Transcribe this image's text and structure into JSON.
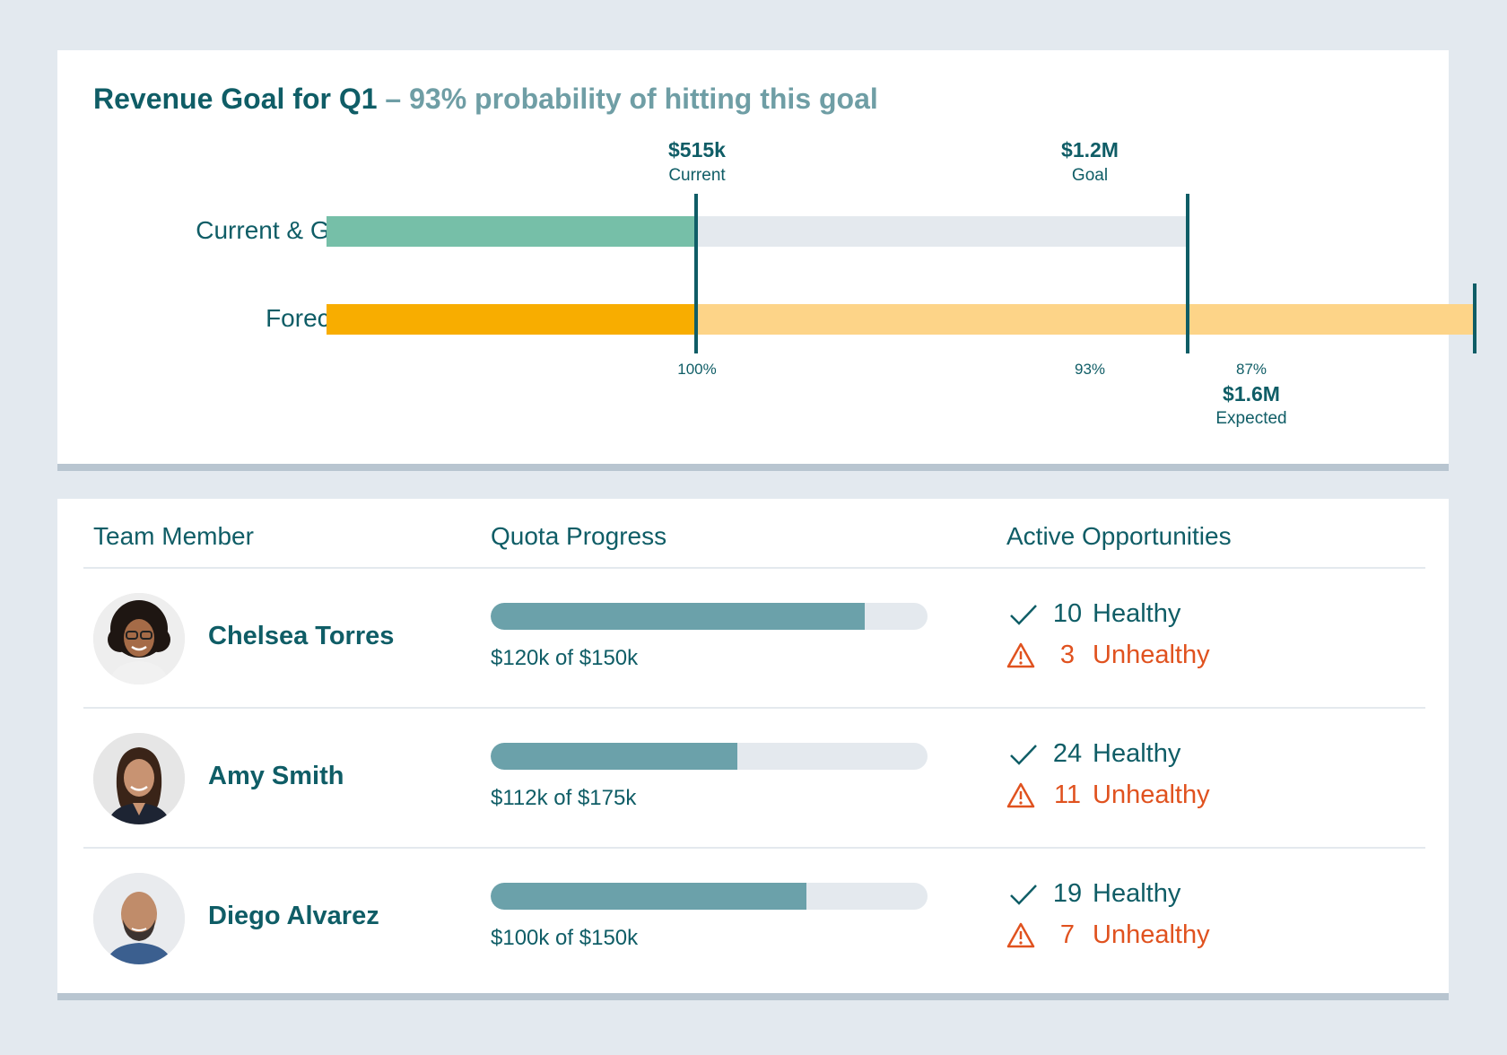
{
  "goal": {
    "title": "Revenue Goal for Q1",
    "subtitle": " – 93% probability of hitting this goal",
    "rows": [
      "Current & Goal",
      "Forecast"
    ],
    "markers": {
      "current": {
        "value": "$515k",
        "caption": "Current"
      },
      "goal": {
        "value": "$1.2M",
        "caption": "Goal"
      },
      "expected": {
        "value": "$1.6M",
        "caption": "Expected"
      }
    },
    "percent_labels": {
      "current": "100%",
      "goal": "93%",
      "expected": "87%"
    },
    "colors": {
      "current_bar": "#76bfa8",
      "goal_remaining_bar": "#e4e9ee",
      "forecast_current_bar": "#f8ad00",
      "forecast_expected_bar": "#fdd488",
      "marker_line": "#0f5d66"
    }
  },
  "chart_data": {
    "type": "bar",
    "categories": [
      "Current & Goal",
      "Forecast"
    ],
    "series": [
      {
        "values": [
          515,
          515
        ]
      },
      {
        "values": [
          1200,
          1600
        ]
      }
    ],
    "markers": [
      {
        "value": 515,
        "label": "$515k",
        "caption": "Current",
        "pct": "100%"
      },
      {
        "value": 1200,
        "label": "$1.2M",
        "caption": "Goal",
        "pct": "93%"
      },
      {
        "value": 1600,
        "label": "$1.6M",
        "caption": "Expected",
        "pct": "87%"
      }
    ]
  },
  "team": {
    "headers": {
      "member": "Team Member",
      "quota": "Quota Progress",
      "opps": "Active Opportunities"
    },
    "healthy_label": "Healthy",
    "unhealthy_label": "Unhealthy",
    "members": [
      {
        "name": "Chelsea Torres",
        "quota_text": "$120k of $150k",
        "progress": 0.857,
        "healthy": "10",
        "unhealthy": "3"
      },
      {
        "name": "Amy Smith",
        "quota_text": "$112k of $175k",
        "progress": 0.564,
        "healthy": "24",
        "unhealthy": "11"
      },
      {
        "name": "Diego Alvarez",
        "quota_text": "$100k of $150k",
        "progress": 0.723,
        "healthy": "19",
        "unhealthy": "7"
      }
    ],
    "colors": {
      "quota_fill": "#6ba1aa",
      "quota_track": "#e4e9ee",
      "healthy": "#0f5d66",
      "unhealthy": "#e0521f"
    }
  }
}
